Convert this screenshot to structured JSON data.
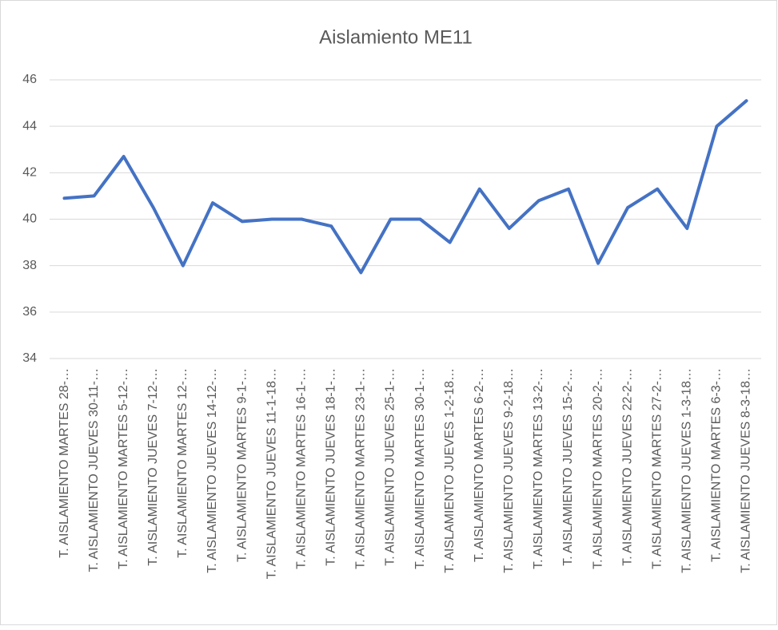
{
  "chart_data": {
    "type": "line",
    "title": "Aislamiento ME11",
    "categories": [
      "T. AISLAMIENTO MARTES 28-…",
      "T. AISLAMIENTO JUEVES 30-11-…",
      "T. AISLAMIENTO MARTES 5-12-…",
      "T. AISLAMIENTO JUEVES 7-12-…",
      "T. AISLAMIENTO MARTES 12-…",
      "T. AISLAMIENTO JUEVES 14-12-…",
      "T. AISLAMIENTO MARTES 9-1-…",
      "T. AISLAMIENTO JUEVES 11-1-18…",
      "T. AISLAMIENTO MARTES 16-1-…",
      "T. AISLAMIENTO JUEVES 18-1-…",
      "T. AISLAMIENTO MARTES 23-1-…",
      "T. AISLAMIENTO JUEVES 25-1-…",
      "T. AISLAMIENTO MARTES 30-1-…",
      "T. AISLAMIENTO JUEVES 1-2-18…",
      "T. AISLAMIENTO MARTES 6-2-…",
      "T. AISLAMIENTO JUEVES 9-2-18…",
      "T. AISLAMIENTO MARTES 13-2-…",
      "T. AISLAMIENTO JUEVES 15-2-…",
      "T. AISLAMIENTO MARTES 20-2-…",
      "T. AISLAMIENTO JUEVES 22-2-…",
      "T. AISLAMIENTO MARTES 27-2-…",
      "T. AISLAMIENTO JUEVES 1-3-18…",
      "T. AISLAMIENTO MARTES 6-3-…",
      "T. AISLAMIENTO JUEVES 8-3-18…"
    ],
    "values": [
      40.9,
      41.0,
      42.7,
      40.5,
      38.0,
      40.7,
      39.9,
      40.0,
      40.0,
      39.7,
      37.7,
      40.0,
      40.0,
      39.0,
      41.3,
      39.6,
      40.8,
      41.3,
      38.1,
      40.5,
      41.3,
      39.6,
      44.0,
      45.1
    ],
    "color": "#4472c4",
    "ylim": [
      34,
      46
    ],
    "yticks": [
      34,
      36,
      38,
      40,
      42,
      44,
      46
    ],
    "grid": true
  }
}
